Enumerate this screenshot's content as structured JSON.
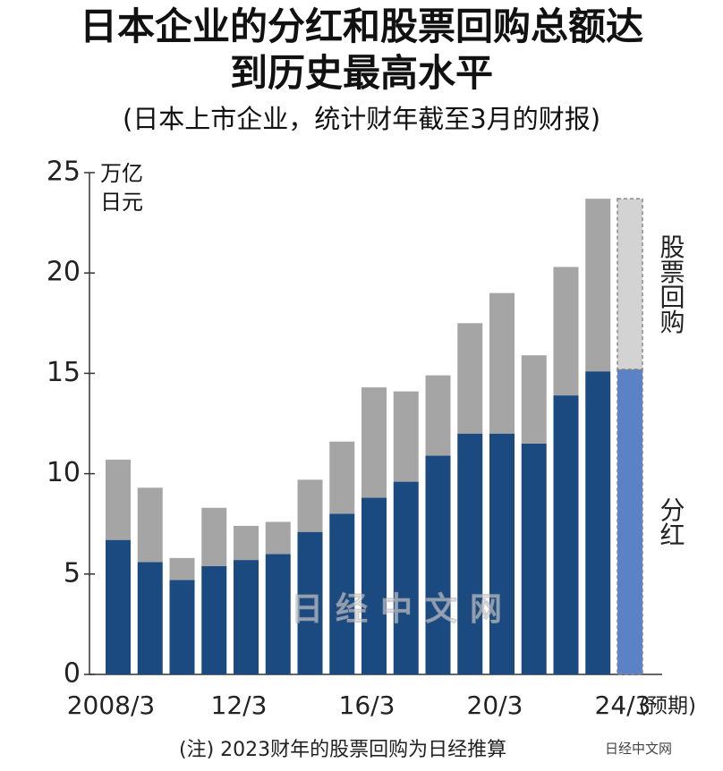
{
  "chart_data": {
    "type": "stacked_bar",
    "title": "日本企业的分红和股票回购总额达到历史最高水平",
    "subtitle": "(日本上市企业，统计财年截至3月的财报)",
    "y_unit": "万亿日元",
    "categories": [
      "2008/3",
      null,
      null,
      null,
      "12/3",
      null,
      null,
      null,
      "16/3",
      null,
      null,
      null,
      "20/3",
      null,
      null,
      null,
      "24/3"
    ],
    "category_note": "(预期)",
    "series": [
      {
        "name": "分红",
        "color": "#1b4a80",
        "colors": [
          "#1b4a80",
          "#1b4a80",
          "#1b4a80",
          "#1b4a80",
          "#1b4a80",
          "#1b4a80",
          "#1b4a80",
          "#1b4a80",
          "#1b4a80",
          "#1b4a80",
          "#1b4a80",
          "#1b4a80",
          "#1b4a80",
          "#1b4a80",
          "#1b4a80",
          "#1b4a80",
          "#5b82c6"
        ],
        "values": [
          6.7,
          5.6,
          4.7,
          5.4,
          5.7,
          6.0,
          7.1,
          8.0,
          8.8,
          9.6,
          10.9,
          12.0,
          12.0,
          11.5,
          13.9,
          15.1,
          15.2
        ]
      },
      {
        "name": "股票回购",
        "color": "#a5a5a5",
        "colors": [
          "#a5a5a5",
          "#a5a5a5",
          "#a5a5a5",
          "#a5a5a5",
          "#a5a5a5",
          "#a5a5a5",
          "#a5a5a5",
          "#a5a5a5",
          "#a5a5a5",
          "#a5a5a5",
          "#a5a5a5",
          "#a5a5a5",
          "#a5a5a5",
          "#a5a5a5",
          "#a5a5a5",
          "#a5a5a5",
          "#d3d3d3"
        ],
        "values": [
          4.0,
          3.7,
          1.1,
          2.9,
          1.7,
          1.6,
          2.6,
          3.6,
          5.5,
          4.5,
          4.0,
          5.5,
          7.0,
          4.4,
          6.4,
          8.6,
          8.5
        ]
      }
    ],
    "ylim": [
      0,
      25
    ],
    "yticks": [
      0,
      5,
      10,
      15,
      20,
      25
    ]
  },
  "note": "(注) 2023财年的股票回购为日经推算",
  "watermark": "日经中文网",
  "source": "日经中文网"
}
